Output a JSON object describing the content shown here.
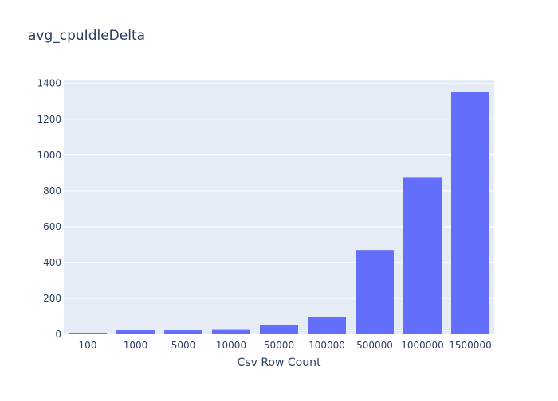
{
  "chart_data": {
    "type": "bar",
    "title": "avg_cpuIdleDelta",
    "xlabel": "Csv Row Count",
    "ylabel": "",
    "categories": [
      "100",
      "1000",
      "5000",
      "10000",
      "50000",
      "100000",
      "500000",
      "1000000",
      "1500000"
    ],
    "values": [
      8,
      22,
      22,
      24,
      53,
      96,
      470,
      873,
      1350
    ],
    "ylim": [
      0,
      1421
    ],
    "yticks": [
      0,
      200,
      400,
      600,
      800,
      1000,
      1200,
      1400
    ],
    "grid": true,
    "legend": "none"
  },
  "colors": {
    "bar": "#636efa",
    "plot_bg": "#e5ecf6",
    "grid": "#ffffff",
    "text": "#2a3f5f"
  }
}
